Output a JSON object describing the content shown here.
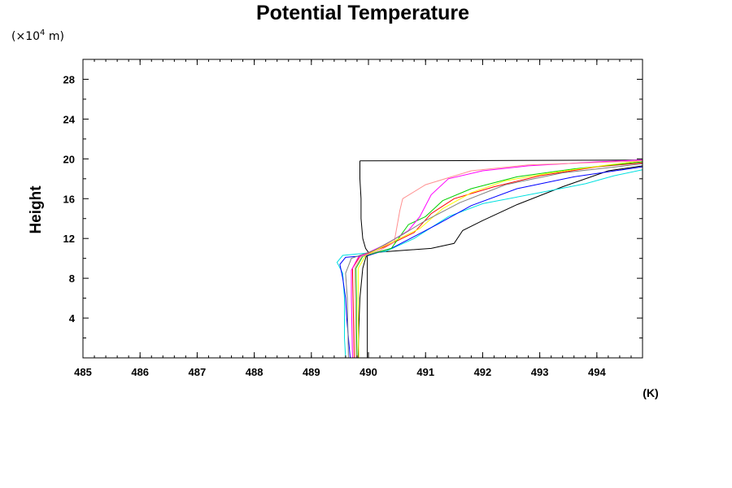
{
  "chart_data": {
    "type": "line",
    "title": "Potential Temperature",
    "ylabel": "Height",
    "y_unit_prefix": "(×10",
    "y_unit_exp": "4",
    "y_unit_suffix": " m)",
    "x_unit": "(K)",
    "xlim": [
      485,
      494.8
    ],
    "ylim": [
      0,
      30
    ],
    "x_ticks": [
      485,
      486,
      487,
      488,
      489,
      490,
      491,
      492,
      493,
      494
    ],
    "x_tick_labels": [
      "485",
      "486",
      "487",
      "488",
      "489",
      "490",
      "491",
      "492",
      "493",
      "494"
    ],
    "y_ticks": [
      4,
      8,
      12,
      16,
      20,
      24,
      28
    ],
    "y_tick_labels": [
      "4",
      "8",
      "12",
      "16",
      "20",
      "24",
      "28"
    ],
    "grid": false,
    "legend": false,
    "series": [
      {
        "color": "#000000",
        "points": [
          [
            489.98,
            0
          ],
          [
            489.98,
            10.2
          ]
        ]
      },
      {
        "color": "#000000",
        "points": [
          [
            489.82,
            0
          ],
          [
            489.83,
            3
          ],
          [
            489.85,
            6
          ],
          [
            489.9,
            9
          ],
          [
            489.96,
            10.2
          ],
          [
            490.15,
            10.6
          ],
          [
            490.6,
            10.8
          ],
          [
            491.1,
            11.0
          ],
          [
            491.5,
            11.5
          ],
          [
            491.65,
            12.8
          ],
          [
            492.0,
            13.8
          ],
          [
            492.6,
            15.4
          ],
          [
            493.4,
            17.2
          ],
          [
            494.2,
            18.8
          ],
          [
            494.8,
            19.3
          ]
        ]
      },
      {
        "color": "#000000",
        "points": [
          [
            489.85,
            19.8
          ],
          [
            489.85,
            18
          ],
          [
            489.87,
            16
          ],
          [
            489.87,
            14
          ],
          [
            489.9,
            12
          ],
          [
            489.95,
            11
          ],
          [
            490.0,
            10.6
          ]
        ]
      },
      {
        "color": "#000000",
        "points": [
          [
            489.85,
            19.8
          ],
          [
            491.7,
            19.82
          ],
          [
            494.8,
            19.88
          ]
        ]
      },
      {
        "color": "#00e0e0",
        "points": [
          [
            489.6,
            0
          ],
          [
            489.58,
            2
          ],
          [
            489.58,
            4
          ],
          [
            489.58,
            6
          ],
          [
            489.55,
            8.5
          ],
          [
            489.45,
            9.6
          ],
          [
            489.55,
            10.3
          ],
          [
            489.9,
            10.5
          ],
          [
            490.3,
            10.7
          ],
          [
            490.8,
            12.0
          ],
          [
            491.4,
            14.2
          ],
          [
            492.0,
            15.5
          ],
          [
            493.0,
            16.6
          ],
          [
            493.8,
            17.5
          ],
          [
            494.3,
            18.3
          ],
          [
            494.8,
            18.9
          ]
        ]
      },
      {
        "color": "#0000ff",
        "points": [
          [
            489.68,
            0
          ],
          [
            489.65,
            2
          ],
          [
            489.62,
            4
          ],
          [
            489.6,
            6
          ],
          [
            489.55,
            8
          ],
          [
            489.5,
            9.4
          ],
          [
            489.6,
            10.1
          ],
          [
            490.0,
            10.3
          ],
          [
            490.4,
            11.0
          ],
          [
            490.8,
            12.2
          ],
          [
            491.2,
            13.4
          ],
          [
            491.8,
            15.3
          ],
          [
            492.6,
            17.0
          ],
          [
            493.6,
            18.2
          ],
          [
            494.8,
            19.2
          ]
        ]
      },
      {
        "color": "#ff0000",
        "points": [
          [
            489.75,
            0
          ],
          [
            489.74,
            3
          ],
          [
            489.73,
            6
          ],
          [
            489.72,
            9
          ],
          [
            489.85,
            10.2
          ],
          [
            490.3,
            11.2
          ],
          [
            490.8,
            12.6
          ],
          [
            491.1,
            14.5
          ],
          [
            491.5,
            16.0
          ],
          [
            492.2,
            17.2
          ],
          [
            493.0,
            18.3
          ],
          [
            494.0,
            19.2
          ],
          [
            494.8,
            19.6
          ]
        ]
      },
      {
        "color": "#00d000",
        "points": [
          [
            489.8,
            0
          ],
          [
            489.79,
            3
          ],
          [
            489.79,
            6
          ],
          [
            489.78,
            9
          ],
          [
            489.9,
            10.2
          ],
          [
            490.4,
            11.0
          ],
          [
            490.7,
            13.4
          ],
          [
            491.0,
            14.2
          ],
          [
            491.3,
            15.8
          ],
          [
            491.8,
            17.0
          ],
          [
            492.6,
            18.2
          ],
          [
            493.6,
            19.0
          ],
          [
            494.8,
            19.7
          ]
        ]
      },
      {
        "color": "#ffff00",
        "points": [
          [
            489.83,
            0
          ],
          [
            489.82,
            3
          ],
          [
            489.82,
            6
          ],
          [
            489.82,
            9
          ],
          [
            489.95,
            10.3
          ],
          [
            490.4,
            11.6
          ],
          [
            490.9,
            13.0
          ],
          [
            491.3,
            15.0
          ],
          [
            491.8,
            16.6
          ],
          [
            492.4,
            17.8
          ],
          [
            493.2,
            18.6
          ],
          [
            494.2,
            19.4
          ],
          [
            494.8,
            19.8
          ]
        ]
      },
      {
        "color": "#ff00ff",
        "points": [
          [
            489.72,
            0
          ],
          [
            489.71,
            3
          ],
          [
            489.7,
            6
          ],
          [
            489.7,
            8.8
          ],
          [
            489.82,
            10.1
          ],
          [
            490.3,
            11.4
          ],
          [
            490.7,
            12.8
          ],
          [
            490.9,
            14.2
          ],
          [
            491.1,
            16.4
          ],
          [
            491.4,
            18.0
          ],
          [
            492.0,
            18.8
          ],
          [
            492.8,
            19.3
          ],
          [
            494.0,
            19.7
          ],
          [
            494.8,
            19.9
          ]
        ]
      },
      {
        "color": "#ff9090",
        "points": [
          [
            489.78,
            0
          ],
          [
            489.77,
            3
          ],
          [
            489.77,
            6
          ],
          [
            489.76,
            9
          ],
          [
            489.88,
            10.2
          ],
          [
            490.2,
            10.8
          ],
          [
            490.45,
            11.6
          ],
          [
            490.55,
            14.8
          ],
          [
            490.6,
            16.0
          ],
          [
            491.0,
            17.4
          ],
          [
            491.8,
            18.8
          ],
          [
            492.8,
            19.4
          ],
          [
            494.8,
            19.8
          ]
        ]
      },
      {
        "color": "#7f7f7f",
        "points": [
          [
            489.65,
            0
          ],
          [
            489.64,
            3
          ],
          [
            489.63,
            6
          ],
          [
            489.6,
            8.5
          ],
          [
            489.7,
            10.0
          ],
          [
            490.1,
            10.8
          ],
          [
            490.6,
            12.4
          ],
          [
            491.0,
            13.8
          ],
          [
            491.6,
            15.6
          ],
          [
            492.4,
            17.4
          ],
          [
            493.4,
            18.6
          ],
          [
            494.8,
            19.5
          ]
        ]
      }
    ]
  }
}
